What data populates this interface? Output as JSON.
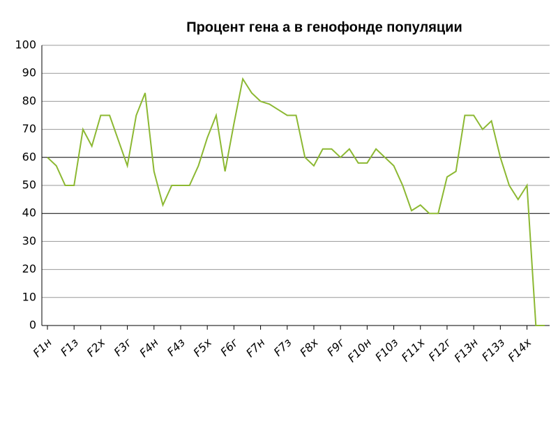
{
  "chart_data": {
    "type": "line",
    "title": "Процент гена а в генофонде популяции",
    "categories": [
      "F1н",
      null,
      null,
      "F1з",
      null,
      null,
      "F2х",
      null,
      null,
      "F3г",
      null,
      null,
      "F4н",
      null,
      null,
      "F4з",
      null,
      null,
      "F5х",
      null,
      null,
      "F6г",
      null,
      null,
      "F7н",
      null,
      null,
      "F7з",
      null,
      null,
      "F8х",
      null,
      null,
      "F9г",
      null,
      null,
      "F10н",
      null,
      null,
      "F10з",
      null,
      null,
      "F11х",
      null,
      null,
      "F12г",
      null,
      null,
      "F13н",
      null,
      null,
      "F13з",
      null,
      null,
      "F14х",
      null,
      null
    ],
    "series": [
      {
        "color": "#8cb832",
        "values": [
          60,
          57,
          50,
          50,
          70,
          64,
          75,
          75,
          66,
          57,
          75,
          83,
          55,
          43,
          50,
          50,
          50,
          57,
          67,
          75,
          55,
          72,
          88,
          83,
          80,
          79,
          77,
          75,
          75,
          60,
          57,
          63,
          63,
          60,
          63,
          58,
          58,
          63,
          60,
          57,
          50,
          41,
          43,
          40,
          40,
          53,
          55,
          75,
          75,
          70,
          73,
          60,
          50,
          45,
          50,
          0,
          0
        ]
      }
    ],
    "ylim": [
      0,
      100
    ],
    "yticks": [
      0,
      10,
      20,
      30,
      40,
      50,
      60,
      70,
      80,
      90,
      100
    ],
    "grid": true,
    "strong_grid": [
      40,
      60
    ]
  }
}
